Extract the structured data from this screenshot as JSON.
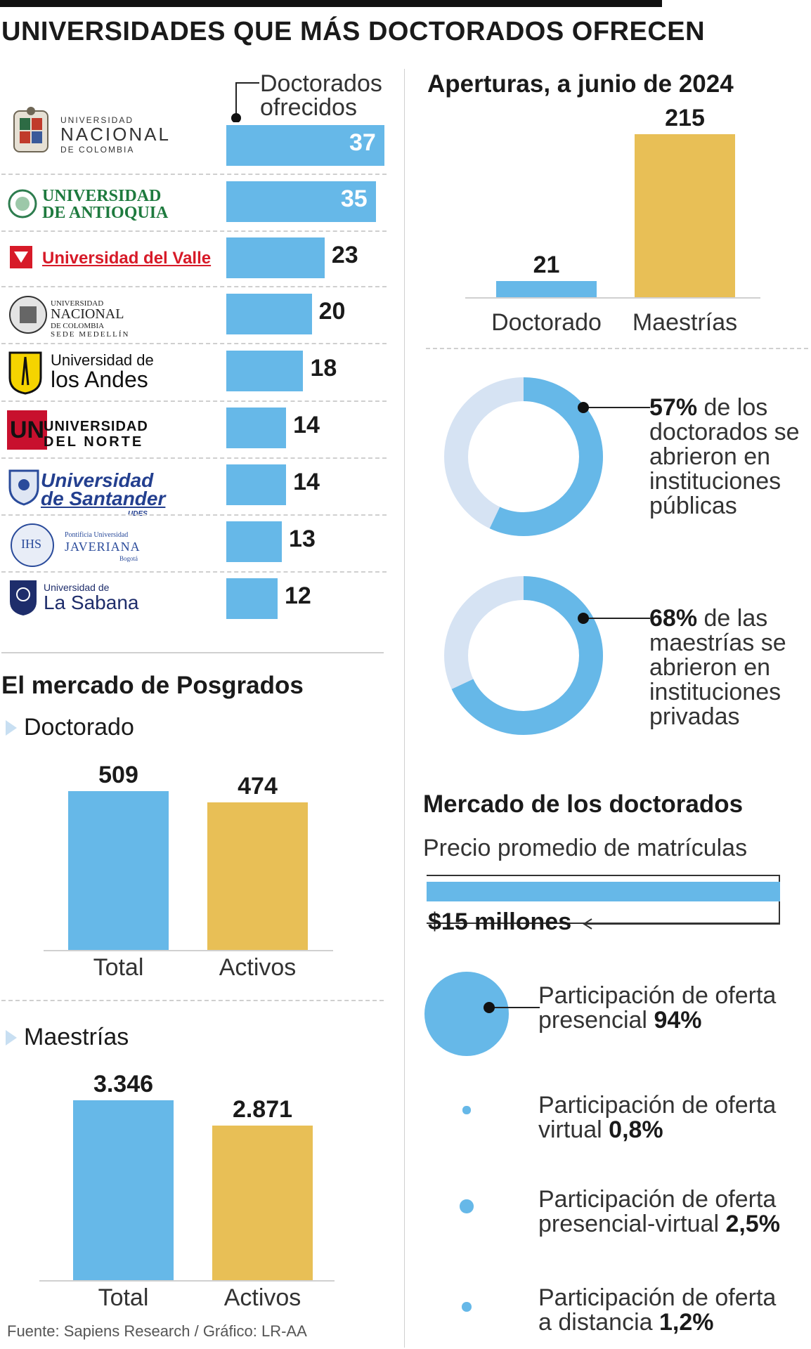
{
  "title": "UNIVERSIDADES QUE MÁS DOCTORADOS OFRECEN",
  "doctorados_header": [
    "Doctorados",
    "ofrecidos"
  ],
  "universities": [
    {
      "name": "Universidad Nacional de Colombia",
      "logo": {
        "small": "UNIVERSIDAD",
        "big": "NACIONAL",
        "sub": "DE COLOMBIA"
      },
      "value": 37
    },
    {
      "name": "Universidad de Antioquia",
      "logo": {
        "l1": "UNIVERSIDAD",
        "l2": "DE ANTIOQUIA"
      },
      "value": 35
    },
    {
      "name": "Universidad del Valle",
      "logo": {
        "l1": "Universidad del Valle"
      },
      "value": 23
    },
    {
      "name": "Universidad Nacional de Colombia Sede Medellín",
      "logo": {
        "l1": "UNIVERSIDAD",
        "l2": "NACIONAL",
        "l3": "DE COLOMBIA",
        "l4": "SEDE MEDELLÍN"
      },
      "value": 20
    },
    {
      "name": "Universidad de los Andes",
      "logo": {
        "l1": "Universidad de",
        "l2": "los Andes"
      },
      "value": 18
    },
    {
      "name": "Universidad del Norte",
      "logo": {
        "mark": "UN",
        "l1": "UNIVERSIDAD",
        "l2": "DEL NORTE"
      },
      "value": 14
    },
    {
      "name": "Universidad de Santander",
      "logo": {
        "l1": "Universidad",
        "l2": "de Santander",
        "l3": "UDES"
      },
      "value": 14
    },
    {
      "name": "Pontificia Universidad Javeriana",
      "logo": {
        "mark": "IHS",
        "l1": "Pontificia Universidad",
        "l2": "JAVERIANA",
        "l3": "Bogotá"
      },
      "value": 13
    },
    {
      "name": "Universidad de La Sabana",
      "logo": {
        "l1": "Universidad de",
        "l2": "La Sabana"
      },
      "value": 12
    }
  ],
  "aperturas": {
    "title": "Aperturas, a junio de 2024",
    "categories": [
      "Doctorado",
      "Maestrías"
    ],
    "values": [
      21,
      215
    ],
    "labels": [
      "21",
      "215"
    ]
  },
  "donuts": [
    {
      "percent": 57,
      "bold": "57%",
      "text": [
        "de los",
        "doctorados se",
        "abrieron en",
        "instituciones",
        "públicas"
      ]
    },
    {
      "percent": 68,
      "bold": "68%",
      "text": [
        "de las",
        "maestrías se",
        "abrieron en",
        "instituciones",
        "privadas"
      ]
    }
  ],
  "mercado": {
    "title": "El mercado de Posgrados",
    "doctorado": {
      "label": "Doctorado",
      "categories": [
        "Total",
        "Activos"
      ],
      "values": [
        509,
        474
      ],
      "value_labels": [
        "509",
        "474"
      ]
    },
    "maestrias": {
      "label": "Maestrías",
      "categories": [
        "Total",
        "Activos"
      ],
      "values": [
        3346,
        2871
      ],
      "value_labels": [
        "3.346",
        "2.871"
      ]
    }
  },
  "mercado_doctorados": {
    "title": "Mercado de los doctorados",
    "price_label": "Precio promedio de matrículas",
    "price_value": "$15 millones",
    "participacion": [
      {
        "line1": "Participación de oferta",
        "line2": "presencial",
        "value": "94%",
        "share": 94
      },
      {
        "line1": "Participación de oferta",
        "line2": "virtual",
        "value": "0,8%",
        "share": 0.8
      },
      {
        "line1": "Participación de oferta",
        "line2": "presencial-virtual",
        "value": "2,5%",
        "share": 2.5
      },
      {
        "line1": "Participación de oferta",
        "line2": "a distancia",
        "value": "1,2%",
        "share": 1.2
      }
    ]
  },
  "source": "Fuente: Sapiens Research / Gráfico: LR-AA",
  "colors": {
    "blue": "#66b8e8",
    "yellow": "#e8bf56",
    "light_blue": "#d6e3f3",
    "text": "#1a1a1a"
  },
  "chart_data": [
    {
      "type": "bar",
      "title": "UNIVERSIDADES QUE MÁS DOCTORADOS OFRECEN",
      "series_label": "Doctorados ofrecidos",
      "categories": [
        "Universidad Nacional de Colombia",
        "Universidad de Antioquia",
        "Universidad del Valle",
        "Universidad Nacional de Colombia Sede Medellín",
        "Universidad de los Andes",
        "Universidad del Norte",
        "Universidad de Santander",
        "Pontificia Universidad Javeriana",
        "Universidad de La Sabana"
      ],
      "values": [
        37,
        35,
        23,
        20,
        18,
        14,
        14,
        13,
        12
      ],
      "orientation": "horizontal"
    },
    {
      "type": "bar",
      "title": "Aperturas, a junio de 2024",
      "categories": [
        "Doctorado",
        "Maestrías"
      ],
      "values": [
        21,
        215
      ]
    },
    {
      "type": "pie",
      "subtype": "donut",
      "values": [
        57,
        43
      ],
      "highlight": "57% de los doctorados se abrieron en instituciones públicas"
    },
    {
      "type": "pie",
      "subtype": "donut",
      "values": [
        68,
        32
      ],
      "highlight": "68% de las maestrías se abrieron en instituciones privadas"
    },
    {
      "type": "bar",
      "title": "El mercado de Posgrados",
      "subtitle": "Doctorado",
      "categories": [
        "Total",
        "Activos"
      ],
      "values": [
        509,
        474
      ]
    },
    {
      "type": "bar",
      "title": "El mercado de Posgrados",
      "subtitle": "Maestrías",
      "categories": [
        "Total",
        "Activos"
      ],
      "values": [
        3346,
        2871
      ]
    },
    {
      "type": "bar",
      "title": "Mercado de los doctorados",
      "subtitle": "Precio promedio de matrículas",
      "categories": [
        "Precio promedio de matrículas"
      ],
      "values": [
        15
      ],
      "value_label": "$15 millones"
    },
    {
      "type": "scatter",
      "subtype": "proportional-circles",
      "title": "Participación de oferta",
      "categories": [
        "presencial",
        "virtual",
        "presencial-virtual",
        "a distancia"
      ],
      "values": [
        94,
        0.8,
        2.5,
        1.2
      ]
    }
  ]
}
